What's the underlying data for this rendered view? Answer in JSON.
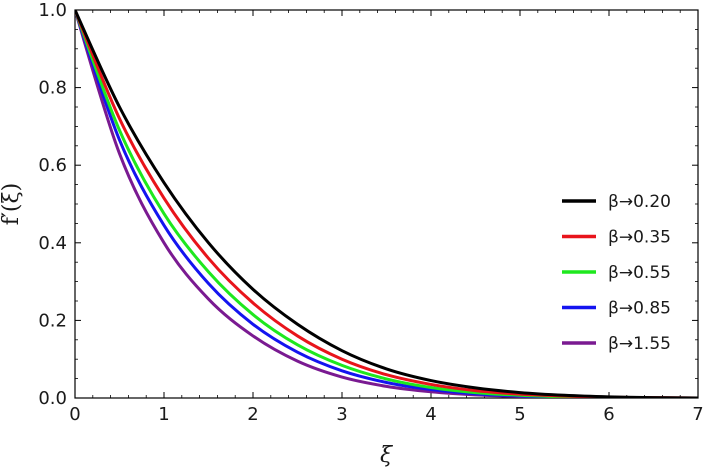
{
  "chart_data": {
    "type": "line",
    "title": "",
    "xlabel": "ξ",
    "ylabel": "f′(ξ)",
    "xlim": [
      0,
      7
    ],
    "ylim": [
      0,
      1.0
    ],
    "x_ticks": [
      "0",
      "1",
      "2",
      "3",
      "4",
      "5",
      "6",
      "7"
    ],
    "y_ticks": [
      "0.0",
      "0.2",
      "0.4",
      "0.6",
      "0.8",
      "1.0"
    ],
    "grid": false,
    "legend_position": "right",
    "x": [
      0,
      0.5,
      1,
      1.5,
      2,
      2.5,
      3,
      3.5,
      4,
      4.5,
      5,
      5.5,
      6,
      6.5,
      7
    ],
    "series": [
      {
        "name": "β→0.20",
        "color": "#000000",
        "values": [
          1.0,
          0.75,
          0.555,
          0.4,
          0.28,
          0.19,
          0.122,
          0.075,
          0.045,
          0.026,
          0.014,
          0.007,
          0.003,
          0.001,
          0.0
        ]
      },
      {
        "name": "β→0.35",
        "color": "#e8141b",
        "values": [
          1.0,
          0.72,
          0.515,
          0.36,
          0.245,
          0.16,
          0.1,
          0.06,
          0.035,
          0.019,
          0.01,
          0.005,
          0.002,
          0.001,
          0.0
        ]
      },
      {
        "name": "β→0.55",
        "color": "#1ee81e",
        "values": [
          1.0,
          0.69,
          0.475,
          0.325,
          0.215,
          0.137,
          0.084,
          0.049,
          0.027,
          0.014,
          0.007,
          0.003,
          0.001,
          0.0,
          0.0
        ]
      },
      {
        "name": "β→0.85",
        "color": "#1414f0",
        "values": [
          1.0,
          0.665,
          0.445,
          0.295,
          0.19,
          0.118,
          0.07,
          0.04,
          0.022,
          0.011,
          0.005,
          0.002,
          0.001,
          0.0,
          0.0
        ]
      },
      {
        "name": "β→1.55",
        "color": "#7a1a91",
        "values": [
          1.0,
          0.63,
          0.4,
          0.255,
          0.16,
          0.095,
          0.054,
          0.03,
          0.016,
          0.008,
          0.004,
          0.002,
          0.001,
          0.0,
          0.0
        ]
      }
    ]
  }
}
